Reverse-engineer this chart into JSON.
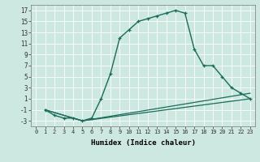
{
  "title": "",
  "xlabel": "Humidex (Indice chaleur)",
  "background_color": "#cce8e0",
  "line_color": "#1a6b5a",
  "xlim": [
    -0.5,
    23.5
  ],
  "ylim": [
    -4,
    18
  ],
  "xticks": [
    0,
    1,
    2,
    3,
    4,
    5,
    6,
    7,
    8,
    9,
    10,
    11,
    12,
    13,
    14,
    15,
    16,
    17,
    18,
    19,
    20,
    21,
    22,
    23
  ],
  "yticks": [
    -3,
    -1,
    1,
    3,
    5,
    7,
    9,
    11,
    13,
    15,
    17
  ],
  "series": [
    {
      "x": [
        1,
        2,
        3,
        4,
        5,
        6,
        7,
        8,
        9,
        10,
        11,
        12,
        13,
        14,
        15,
        16,
        17,
        18,
        19,
        20,
        21,
        22,
        23
      ],
      "y": [
        -1,
        -2,
        -2.5,
        -2.5,
        -3,
        -2.5,
        1,
        5.5,
        12,
        13.5,
        15,
        15.5,
        16,
        16.5,
        17,
        16.5,
        10,
        7,
        7,
        5,
        3,
        2,
        1
      ],
      "style": "-",
      "marker": "+",
      "linewidth": 1.0,
      "markersize": 3.5
    },
    {
      "x": [
        1,
        5,
        23
      ],
      "y": [
        -1,
        -3,
        2
      ],
      "style": "-",
      "marker": null,
      "linewidth": 0.9,
      "markersize": 0
    },
    {
      "x": [
        1,
        5,
        23
      ],
      "y": [
        -1,
        -3,
        1
      ],
      "style": "-",
      "marker": null,
      "linewidth": 0.9,
      "markersize": 0
    }
  ]
}
